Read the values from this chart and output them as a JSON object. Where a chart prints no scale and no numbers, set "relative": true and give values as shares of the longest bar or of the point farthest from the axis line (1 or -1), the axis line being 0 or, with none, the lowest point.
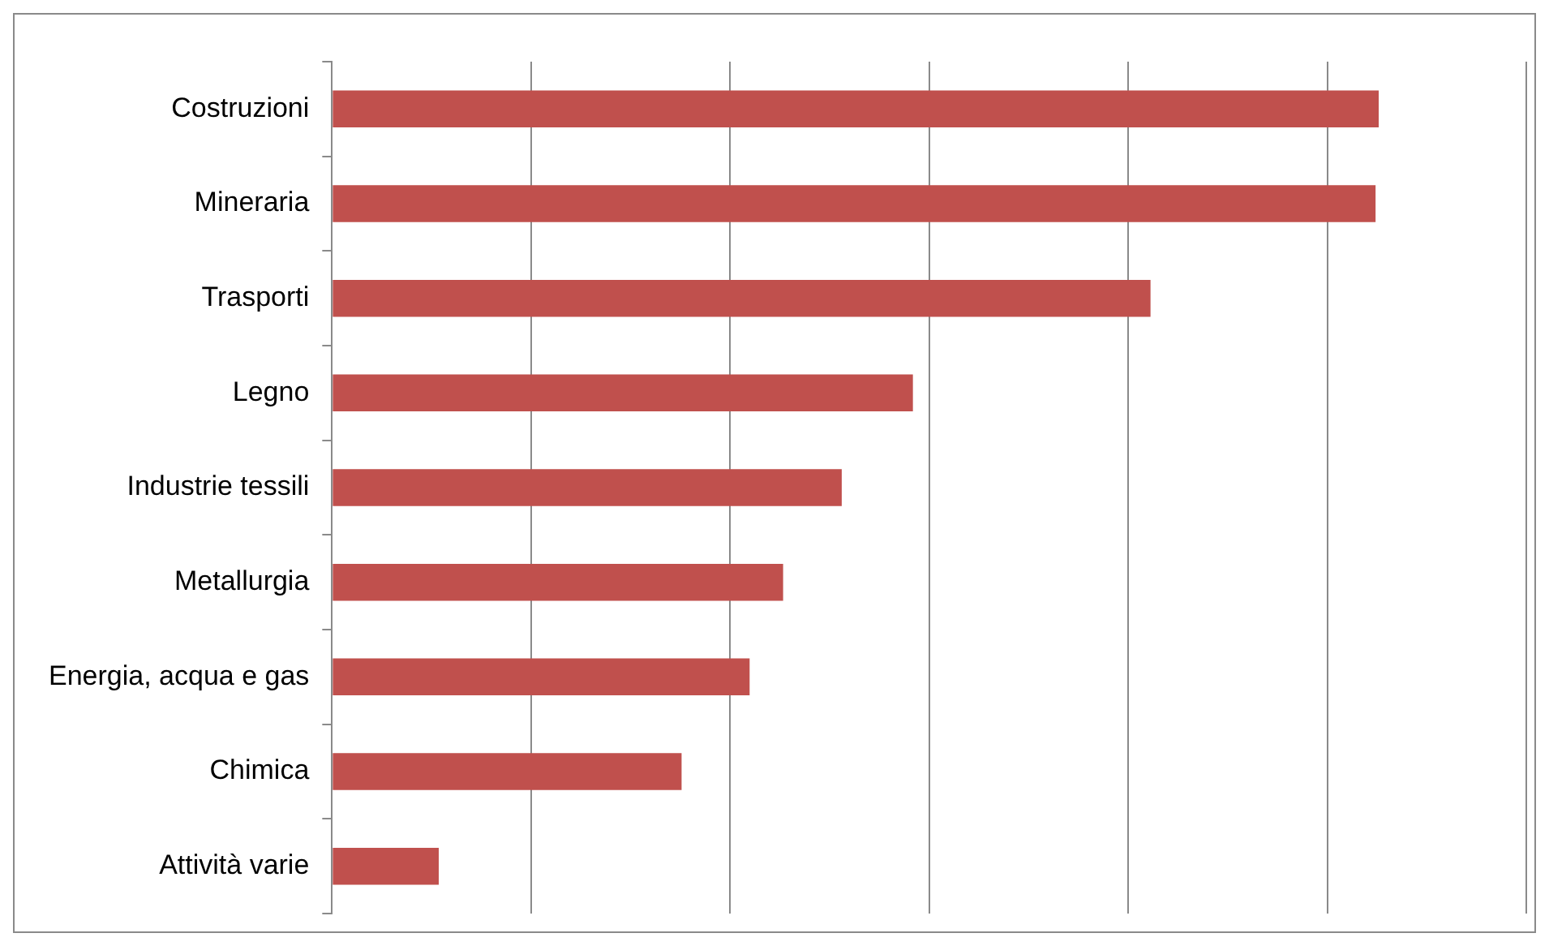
{
  "chart_data": {
    "type": "bar",
    "orientation": "horizontal",
    "relative": true,
    "grid": "x",
    "legend": false,
    "categories": [
      "Costruzioni",
      "Mineraria",
      "Trasporti",
      "Legno",
      "Industrie tessili",
      "Metallurgia",
      "Energia, acqua e gas",
      "Chimica",
      "Attività varie"
    ],
    "series": [
      {
        "color": "#c0504d",
        "values": [
          1,
          0.997,
          0.782,
          0.555,
          0.487,
          0.431,
          0.399,
          0.334,
          0.102
        ]
      }
    ]
  }
}
